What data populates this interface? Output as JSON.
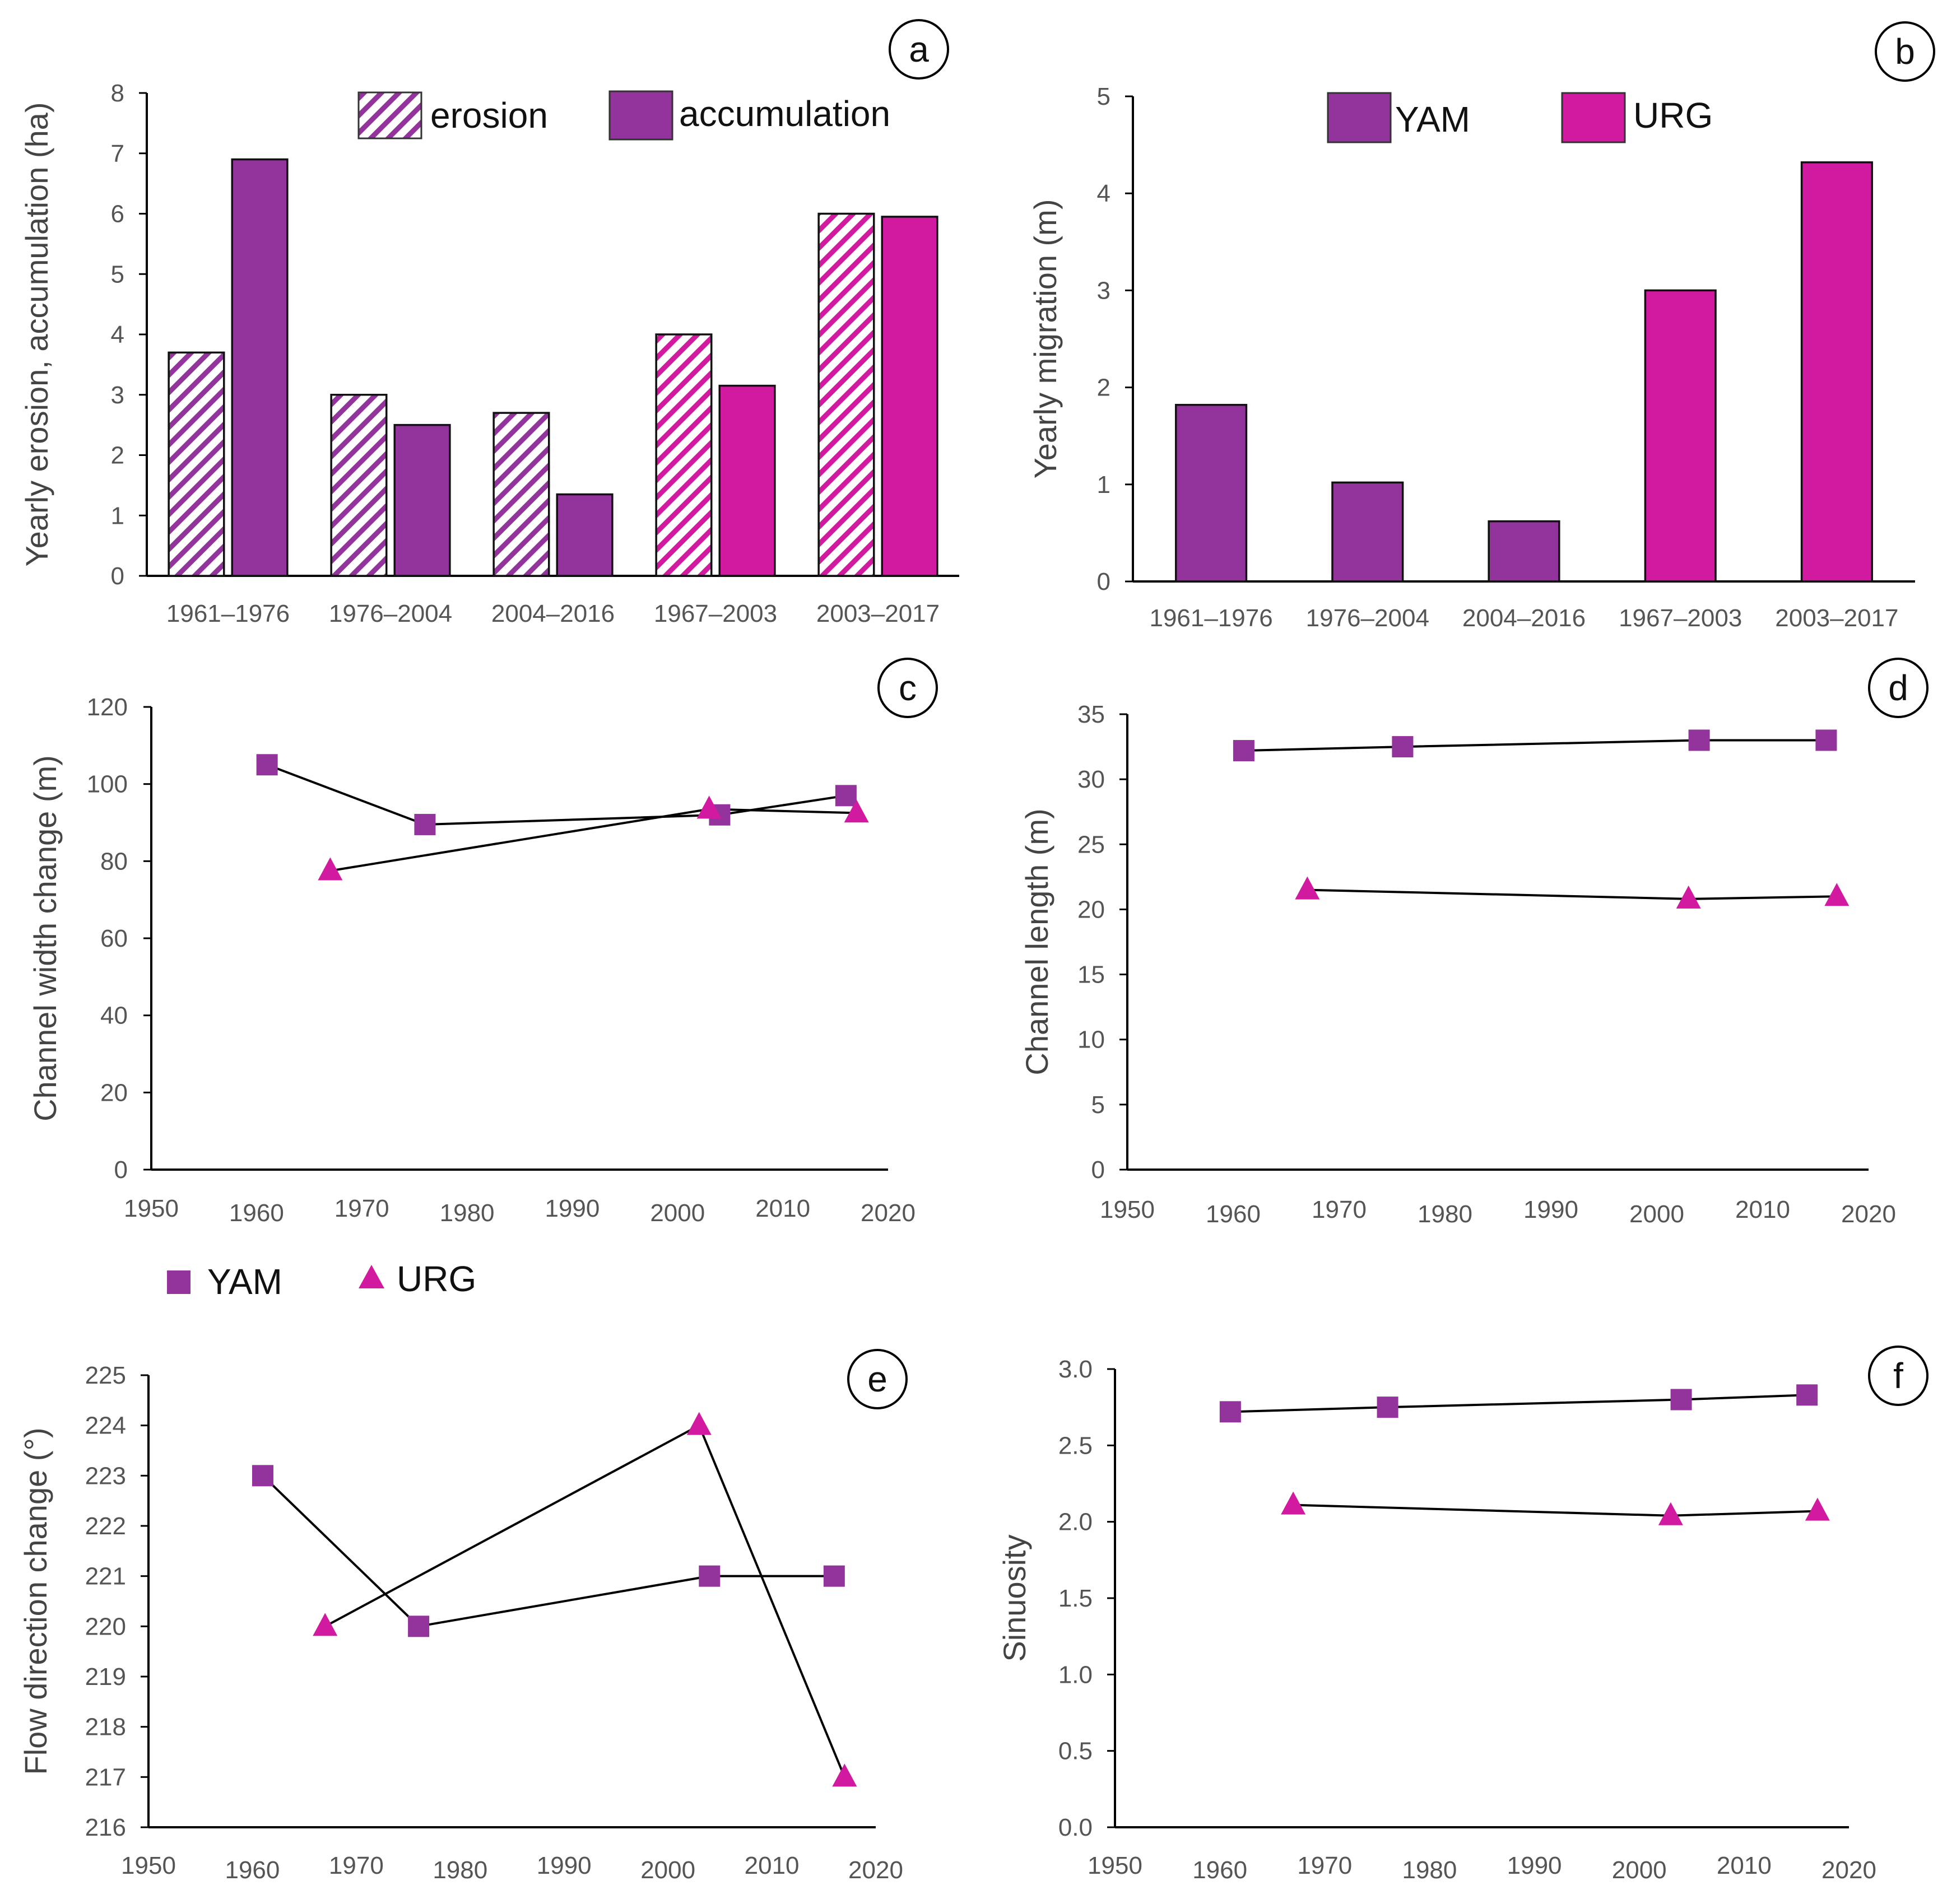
{
  "colors": {
    "yam": "#93339c",
    "urg": "#d11aa0",
    "axis": "#000000"
  },
  "legends": {
    "a": {
      "erosion": "erosion",
      "accumulation": "accumulation"
    },
    "b": {
      "yam": "YAM",
      "urg": "URG"
    },
    "markers": {
      "yam": "YAM",
      "urg": "URG"
    }
  },
  "chart_data": [
    {
      "panel": "a",
      "type": "bar",
      "ylabel": "Yearly erosion, accumulation (ha)",
      "xlabel": "",
      "ylim": [
        0,
        8
      ],
      "yticks": [
        "0",
        "1",
        "2",
        "3",
        "4",
        "5",
        "6",
        "7",
        "8"
      ],
      "categories": [
        "1961–1976",
        "1976–2004",
        "2004–2016",
        "1967–2003",
        "2003–2017"
      ],
      "group_color": [
        "yam",
        "yam",
        "yam",
        "urg",
        "urg"
      ],
      "series": [
        {
          "name": "erosion",
          "pattern": "hatched",
          "values": [
            3.7,
            3.0,
            2.7,
            4.0,
            6.0
          ]
        },
        {
          "name": "accumulation",
          "pattern": "solid",
          "values": [
            6.9,
            2.5,
            1.35,
            3.15,
            5.95
          ]
        }
      ],
      "legend": "top-right"
    },
    {
      "panel": "b",
      "type": "bar",
      "ylabel": "Yearly migration (m)",
      "xlabel": "",
      "ylim": [
        0,
        5
      ],
      "yticks": [
        "0",
        "1",
        "2",
        "3",
        "4",
        "5"
      ],
      "categories": [
        "1961–1976",
        "1976–2004",
        "2004–2016",
        "1967–2003",
        "2003–2017"
      ],
      "group_color": [
        "yam",
        "yam",
        "yam",
        "urg",
        "urg"
      ],
      "series": [
        {
          "name": "migration",
          "values": [
            1.82,
            1.02,
            0.62,
            3.0,
            4.32
          ]
        }
      ],
      "legend": "top-center"
    },
    {
      "panel": "c",
      "type": "line",
      "ylabel": "Channel width change (m)",
      "xlabel": "",
      "xlim": [
        1950,
        2020
      ],
      "ylim": [
        0,
        120
      ],
      "xticks": [
        "1950",
        "1960",
        "1970",
        "1980",
        "1990",
        "2000",
        "2010",
        "2020"
      ],
      "yticks": [
        "0",
        "20",
        "40",
        "60",
        "80",
        "100",
        "120"
      ],
      "series": [
        {
          "name": "YAM",
          "marker": "square",
          "x": [
            1961,
            1976,
            2004,
            2016
          ],
          "y": [
            105,
            89.5,
            92,
            97
          ]
        },
        {
          "name": "URG",
          "marker": "triangle",
          "x": [
            1967,
            2003,
            2017
          ],
          "y": [
            77.5,
            93.5,
            92.5
          ]
        }
      ]
    },
    {
      "panel": "d",
      "type": "line",
      "ylabel": "Channel length (m)",
      "xlabel": "",
      "xlim": [
        1950,
        2020
      ],
      "ylim": [
        0,
        35
      ],
      "xticks": [
        "1950",
        "1960",
        "1970",
        "1980",
        "1990",
        "2000",
        "2010",
        "2020"
      ],
      "yticks": [
        "0",
        "5",
        "10",
        "15",
        "20",
        "25",
        "30",
        "35"
      ],
      "series": [
        {
          "name": "YAM",
          "marker": "square",
          "x": [
            1961,
            1976,
            2004,
            2016
          ],
          "y": [
            32.2,
            32.5,
            33.0,
            33.0
          ]
        },
        {
          "name": "URG",
          "marker": "triangle",
          "x": [
            1967,
            2003,
            2017
          ],
          "y": [
            21.5,
            20.8,
            21.0
          ]
        }
      ]
    },
    {
      "panel": "e",
      "type": "line",
      "ylabel": "Flow direction change (°)",
      "xlabel": "",
      "xlim": [
        1950,
        2020
      ],
      "ylim": [
        216,
        225
      ],
      "xticks": [
        "1950",
        "1960",
        "1970",
        "1980",
        "1990",
        "2000",
        "2010",
        "2020"
      ],
      "yticks": [
        "216",
        "217",
        "218",
        "219",
        "220",
        "221",
        "222",
        "223",
        "224",
        "225"
      ],
      "series": [
        {
          "name": "YAM",
          "marker": "square",
          "x": [
            1961,
            1976,
            2004,
            2016
          ],
          "y": [
            223,
            220,
            221,
            221
          ]
        },
        {
          "name": "URG",
          "marker": "triangle",
          "x": [
            1967,
            2003,
            2017
          ],
          "y": [
            220,
            224,
            217
          ]
        }
      ]
    },
    {
      "panel": "f",
      "type": "line",
      "ylabel": "Sinuosity",
      "xlabel": "",
      "xlim": [
        1950,
        2020
      ],
      "ylim": [
        0,
        3
      ],
      "xticks": [
        "1950",
        "1960",
        "1970",
        "1980",
        "1990",
        "2000",
        "2010",
        "2020"
      ],
      "yticks": [
        "0.0",
        "0.5",
        "1.0",
        "1.5",
        "2.0",
        "2.5",
        "3.0"
      ],
      "series": [
        {
          "name": "YAM",
          "marker": "square",
          "x": [
            1961,
            1976,
            2004,
            2016
          ],
          "y": [
            2.72,
            2.75,
            2.8,
            2.83
          ]
        },
        {
          "name": "URG",
          "marker": "triangle",
          "x": [
            1967,
            2003,
            2017
          ],
          "y": [
            2.11,
            2.04,
            2.07
          ]
        }
      ]
    }
  ]
}
